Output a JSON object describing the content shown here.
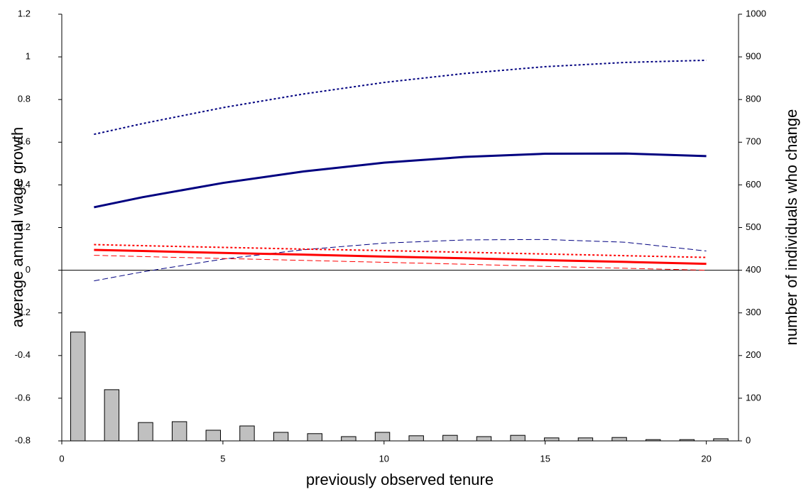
{
  "chart_data": {
    "type": "line",
    "x_label": "previously observed tenure",
    "y_label": "average annual wage growth",
    "y2_label": "number of individuals who change",
    "xlim": [
      0,
      21
    ],
    "xticks": [
      0,
      5,
      10,
      15,
      20
    ],
    "ylim": [
      -0.8,
      1.2
    ],
    "yticks": [
      -0.8,
      -0.6,
      -0.4,
      -0.2,
      0,
      0.2,
      0.4,
      0.6,
      0.8,
      1,
      1.2
    ],
    "y2lim": [
      0,
      1000
    ],
    "y2ticks": [
      0,
      100,
      200,
      300,
      400,
      500,
      600,
      700,
      800,
      900,
      1000
    ],
    "zero_line": true,
    "series": [
      {
        "type": "bar",
        "axis": "y2",
        "color": "#c0c0c0",
        "x": [
          0.5,
          1.55,
          2.6,
          3.65,
          4.7,
          5.75,
          6.8,
          7.85,
          8.9,
          9.95,
          11.0,
          12.05,
          13.1,
          14.15,
          15.2,
          16.25,
          17.3,
          18.35,
          19.4,
          20.45
        ],
        "values": [
          255,
          120,
          43,
          45,
          25,
          35,
          20,
          17,
          10,
          20,
          12,
          13,
          10,
          13,
          7,
          7,
          8,
          3,
          3,
          5
        ]
      },
      {
        "type": "line",
        "color": "#000080",
        "dash": "dotted",
        "width": 2,
        "x": [
          1,
          2.5,
          5,
          7.5,
          10,
          12.5,
          15,
          17.5,
          20
        ],
        "values": [
          0.637,
          0.687,
          0.762,
          0.826,
          0.88,
          0.922,
          0.954,
          0.974,
          0.984
        ]
      },
      {
        "type": "line",
        "color": "#000080",
        "dash": "solid",
        "width": 3,
        "x": [
          1,
          2.5,
          5,
          7.5,
          10,
          12.5,
          15,
          17.5,
          20
        ],
        "values": [
          0.295,
          0.342,
          0.409,
          0.463,
          0.504,
          0.531,
          0.546,
          0.547,
          0.535
        ]
      },
      {
        "type": "line",
        "color": "#000080",
        "dash": "dashed",
        "width": 1,
        "x": [
          1,
          2.5,
          5,
          7.5,
          10,
          12.5,
          15,
          17.5,
          20
        ],
        "values": [
          -0.05,
          -0.008,
          0.052,
          0.096,
          0.127,
          0.142,
          0.144,
          0.131,
          0.09
        ]
      },
      {
        "type": "line",
        "color": "#ff0000",
        "dash": "dotted",
        "width": 2,
        "x": [
          1,
          2.5,
          5,
          7.5,
          10,
          12.5,
          15,
          17.5,
          20
        ],
        "values": [
          0.12,
          0.115,
          0.107,
          0.099,
          0.092,
          0.084,
          0.076,
          0.068,
          0.06
        ]
      },
      {
        "type": "line",
        "color": "#ff0000",
        "dash": "solid",
        "width": 3,
        "x": [
          1,
          2.5,
          5,
          7.5,
          10,
          12.5,
          15,
          17.5,
          20
        ],
        "values": [
          0.095,
          0.09,
          0.081,
          0.073,
          0.064,
          0.056,
          0.047,
          0.039,
          0.03
        ]
      },
      {
        "type": "line",
        "color": "#ff0000",
        "dash": "dashed",
        "width": 1,
        "x": [
          1,
          2.5,
          5,
          7.5,
          10,
          12.5,
          15,
          17.5,
          20
        ],
        "values": [
          0.07,
          0.064,
          0.055,
          0.046,
          0.037,
          0.028,
          0.018,
          0.009,
          0.0
        ]
      }
    ]
  }
}
